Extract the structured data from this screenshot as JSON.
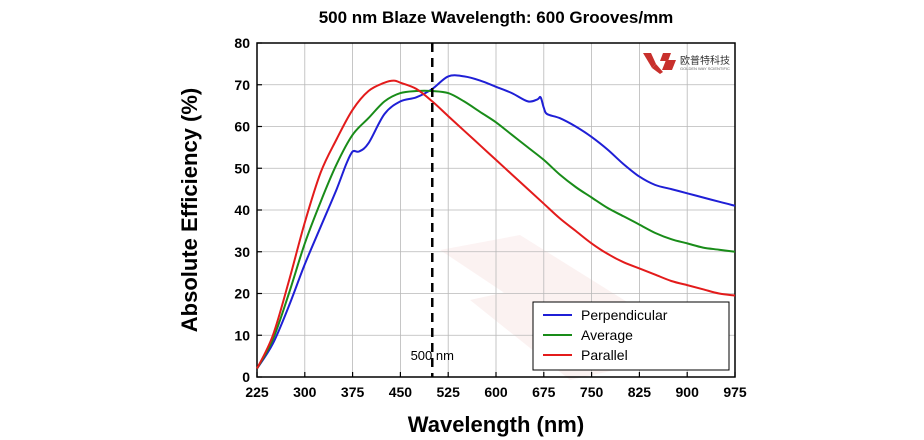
{
  "chart_data": {
    "type": "line",
    "title": "500 nm Blaze Wavelength: 600 Grooves/mm",
    "xlabel": "Wavelength (nm)",
    "ylabel": "Absolute Efficiency (%)",
    "xlim": [
      225,
      975
    ],
    "ylim": [
      0,
      80
    ],
    "xticks": [
      225,
      300,
      375,
      450,
      525,
      600,
      675,
      750,
      825,
      900,
      975
    ],
    "yticks": [
      0,
      10,
      20,
      30,
      40,
      50,
      60,
      70,
      80
    ],
    "grid": true,
    "legend_position": "bottom-right",
    "annotation": {
      "x": 500,
      "label": "500 nm"
    },
    "logo": {
      "text": "欧普特科技",
      "subtext": "GOLDEN WAY SCIENTIFIC",
      "color": "#c8302c"
    },
    "series": [
      {
        "name": "Perpendicular",
        "color": "#1f1fd6",
        "x": [
          225,
          250,
          275,
          300,
          325,
          350,
          365,
          375,
          385,
          400,
          425,
          450,
          475,
          500,
          525,
          550,
          575,
          600,
          625,
          650,
          665,
          670,
          675,
          680,
          700,
          725,
          750,
          775,
          800,
          825,
          850,
          875,
          900,
          925,
          950,
          975
        ],
        "y": [
          2,
          8,
          17,
          27,
          36,
          45,
          51,
          54,
          54,
          56,
          63,
          66,
          67,
          69,
          72,
          72,
          71,
          69.5,
          68,
          66,
          66.5,
          67,
          64.5,
          63,
          62,
          60,
          57.5,
          54.5,
          51,
          48,
          46,
          45,
          44,
          43,
          42,
          41
        ]
      },
      {
        "name": "Average",
        "color": "#198c19",
        "x": [
          225,
          250,
          275,
          300,
          325,
          350,
          375,
          400,
          425,
          450,
          475,
          500,
          525,
          550,
          575,
          600,
          625,
          650,
          675,
          700,
          725,
          750,
          775,
          800,
          825,
          850,
          875,
          900,
          925,
          950,
          975
        ],
        "y": [
          2,
          9,
          20,
          32,
          42,
          51,
          58,
          62,
          66,
          68,
          68.5,
          68.5,
          68,
          66,
          63.5,
          61,
          58,
          55,
          52,
          48.5,
          45.5,
          43,
          40.5,
          38.5,
          36.5,
          34.5,
          33,
          32,
          31,
          30.5,
          30
        ]
      },
      {
        "name": "Parallel",
        "color": "#e31b1b",
        "x": [
          225,
          250,
          275,
          300,
          325,
          350,
          375,
          400,
          425,
          440,
          450,
          475,
          500,
          525,
          550,
          575,
          600,
          625,
          650,
          675,
          700,
          725,
          750,
          775,
          800,
          825,
          850,
          875,
          900,
          925,
          950,
          975
        ],
        "y": [
          2,
          10,
          23,
          37,
          49,
          57,
          64,
          68.5,
          70.5,
          71,
          70.5,
          69,
          66,
          62.5,
          59,
          55.5,
          52,
          48.5,
          45,
          41.5,
          38,
          35,
          32,
          29.5,
          27.5,
          26,
          24.5,
          23,
          22,
          21,
          20,
          19.5
        ]
      }
    ]
  }
}
